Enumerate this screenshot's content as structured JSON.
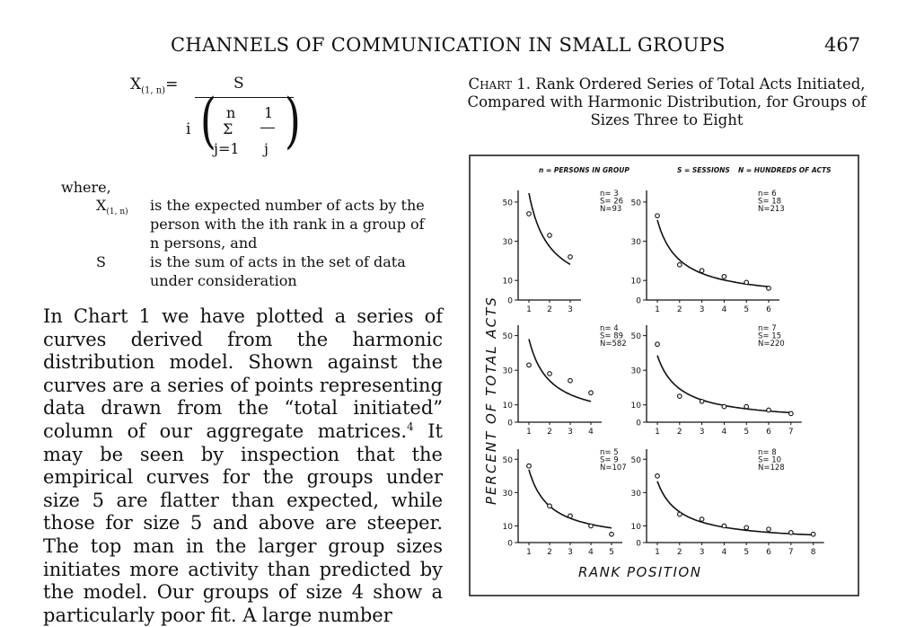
{
  "header": {
    "title": "CHANNELS OF COMMUNICATION IN SMALL GROUPS",
    "page_number": "467"
  },
  "equation": {
    "lhs": "X",
    "lhs_sub": "(1, n)",
    "equals": "=",
    "numerator": "S",
    "i": "i",
    "sum_top": "n",
    "sum_sym": "Σ",
    "sum_bottom": "j=1",
    "frac_num": "1",
    "frac_den": "j"
  },
  "where": "where,",
  "definitions": [
    {
      "term": "X",
      "term_sub": "(1, n)",
      "lines": [
        "is the expected number of acts by the",
        "person with the ith rank in a group of",
        "n persons, and"
      ]
    },
    {
      "term": "S",
      "term_sub": "",
      "lines": [
        "is the sum of acts in the set of data",
        "under consideration"
      ]
    }
  ],
  "paragraph": {
    "before_sup": "In Chart 1 we have plotted a series of curves derived from the harmonic distribution model. Shown against the curves are a series of points representing data drawn from the “total initiated” column of our aggregate matrices.",
    "sup": "4",
    "after_sup": " It may be seen by inspection that the empirical curves for the groups under size 5 are flatter than expected, while those for size 5 and above are steeper. The top man in the larger group sizes initiates more activity than predicted by the model. Our groups of size 4 show a particularly poor fit. A large number"
  },
  "chart_caption": {
    "label": "Chart 1.",
    "text": " Rank Ordered Series of Total Acts Initiated, Compared with Harmonic Distribution, for Groups of Sizes Three to Eight"
  },
  "chart_data": {
    "type": "scatter",
    "title": "Rank Ordered Series of Total Acts Initiated, Compared with Harmonic Distribution, for Groups of Sizes Three to Eight",
    "legend_items": [
      "n = PERSONS IN GROUP",
      "S = SESSIONS",
      "N = HUNDREDS OF ACTS"
    ],
    "ylabel": "PERCENT OF TOTAL ACTS",
    "xlabel": "RANK POSITION",
    "y_ticks": [
      0,
      10,
      30,
      50
    ],
    "ylim": [
      0,
      55
    ],
    "panels": [
      {
        "n": 3,
        "stats": [
          "n= 3",
          "S= 26",
          "N=93"
        ],
        "points": [
          44,
          33,
          22
        ]
      },
      {
        "n": 6,
        "stats": [
          "n= 6",
          "S= 18",
          "N=213"
        ],
        "points": [
          43,
          18,
          15,
          12,
          9,
          6
        ]
      },
      {
        "n": 4,
        "stats": [
          "n= 4",
          "S= 89",
          "N=582"
        ],
        "points": [
          33,
          28,
          24,
          17
        ]
      },
      {
        "n": 7,
        "stats": [
          "n= 7",
          "S= 15",
          "N=220"
        ],
        "points": [
          45,
          15,
          12,
          9,
          9,
          7,
          5
        ]
      },
      {
        "n": 5,
        "stats": [
          "n= 5",
          "S= 9",
          "N=107"
        ],
        "points": [
          46,
          22,
          16,
          10,
          5
        ]
      },
      {
        "n": 8,
        "stats": [
          "n= 8",
          "S= 10",
          "N=128"
        ],
        "points": [
          40,
          17,
          14,
          10,
          9,
          8,
          6,
          5
        ]
      }
    ]
  }
}
